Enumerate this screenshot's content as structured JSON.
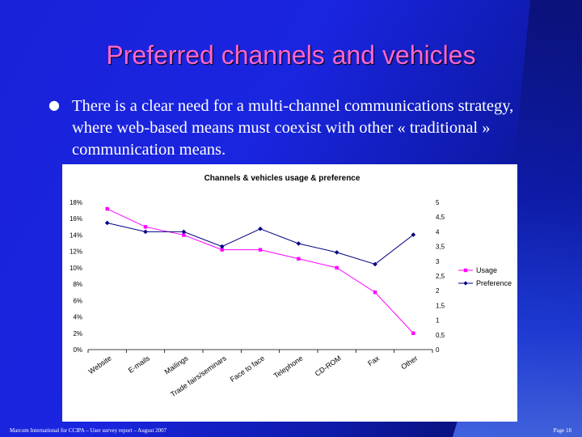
{
  "slide": {
    "title": "Preferred channels and vehicles",
    "bullet_text": "There is a clear need for a multi-channel communications strategy, where web-based means must coexist with other « traditional » communication means.",
    "footer_left": "Marcom International for CCIPA – User survey report – August 2007",
    "footer_right": "Page 18"
  },
  "colors": {
    "title": "#ff66cc",
    "usage": "#ff00ff",
    "preference": "#000080"
  },
  "chart_data": {
    "type": "line",
    "title": "Channels & vehicles usage & preference",
    "categories": [
      "Website",
      "E-mails",
      "Mailings",
      "Trade fairs/seminars",
      "Face to face",
      "Telephone",
      "CD-ROM",
      "Fax",
      "Other"
    ],
    "series": [
      {
        "name": "Usage",
        "axis": "left",
        "marker": "square",
        "values": [
          17.2,
          15.0,
          14.0,
          12.2,
          12.2,
          11.1,
          10.0,
          7.0,
          2.0
        ]
      },
      {
        "name": "Preference",
        "axis": "right",
        "marker": "diamond",
        "values": [
          4.3,
          4.0,
          4.0,
          3.5,
          4.1,
          3.6,
          3.3,
          2.9,
          3.9
        ]
      }
    ],
    "y_left": {
      "min": 0,
      "max": 18,
      "ticks": [
        "0%",
        "2%",
        "4%",
        "6%",
        "8%",
        "10%",
        "12%",
        "14%",
        "16%",
        "18%"
      ]
    },
    "y_right": {
      "min": 0,
      "max": 5,
      "ticks": [
        "0",
        "0,5",
        "1",
        "1,5",
        "2",
        "2,5",
        "3",
        "3,5",
        "4",
        "4,5",
        "5"
      ]
    },
    "grid": false,
    "legend_position": "right"
  }
}
